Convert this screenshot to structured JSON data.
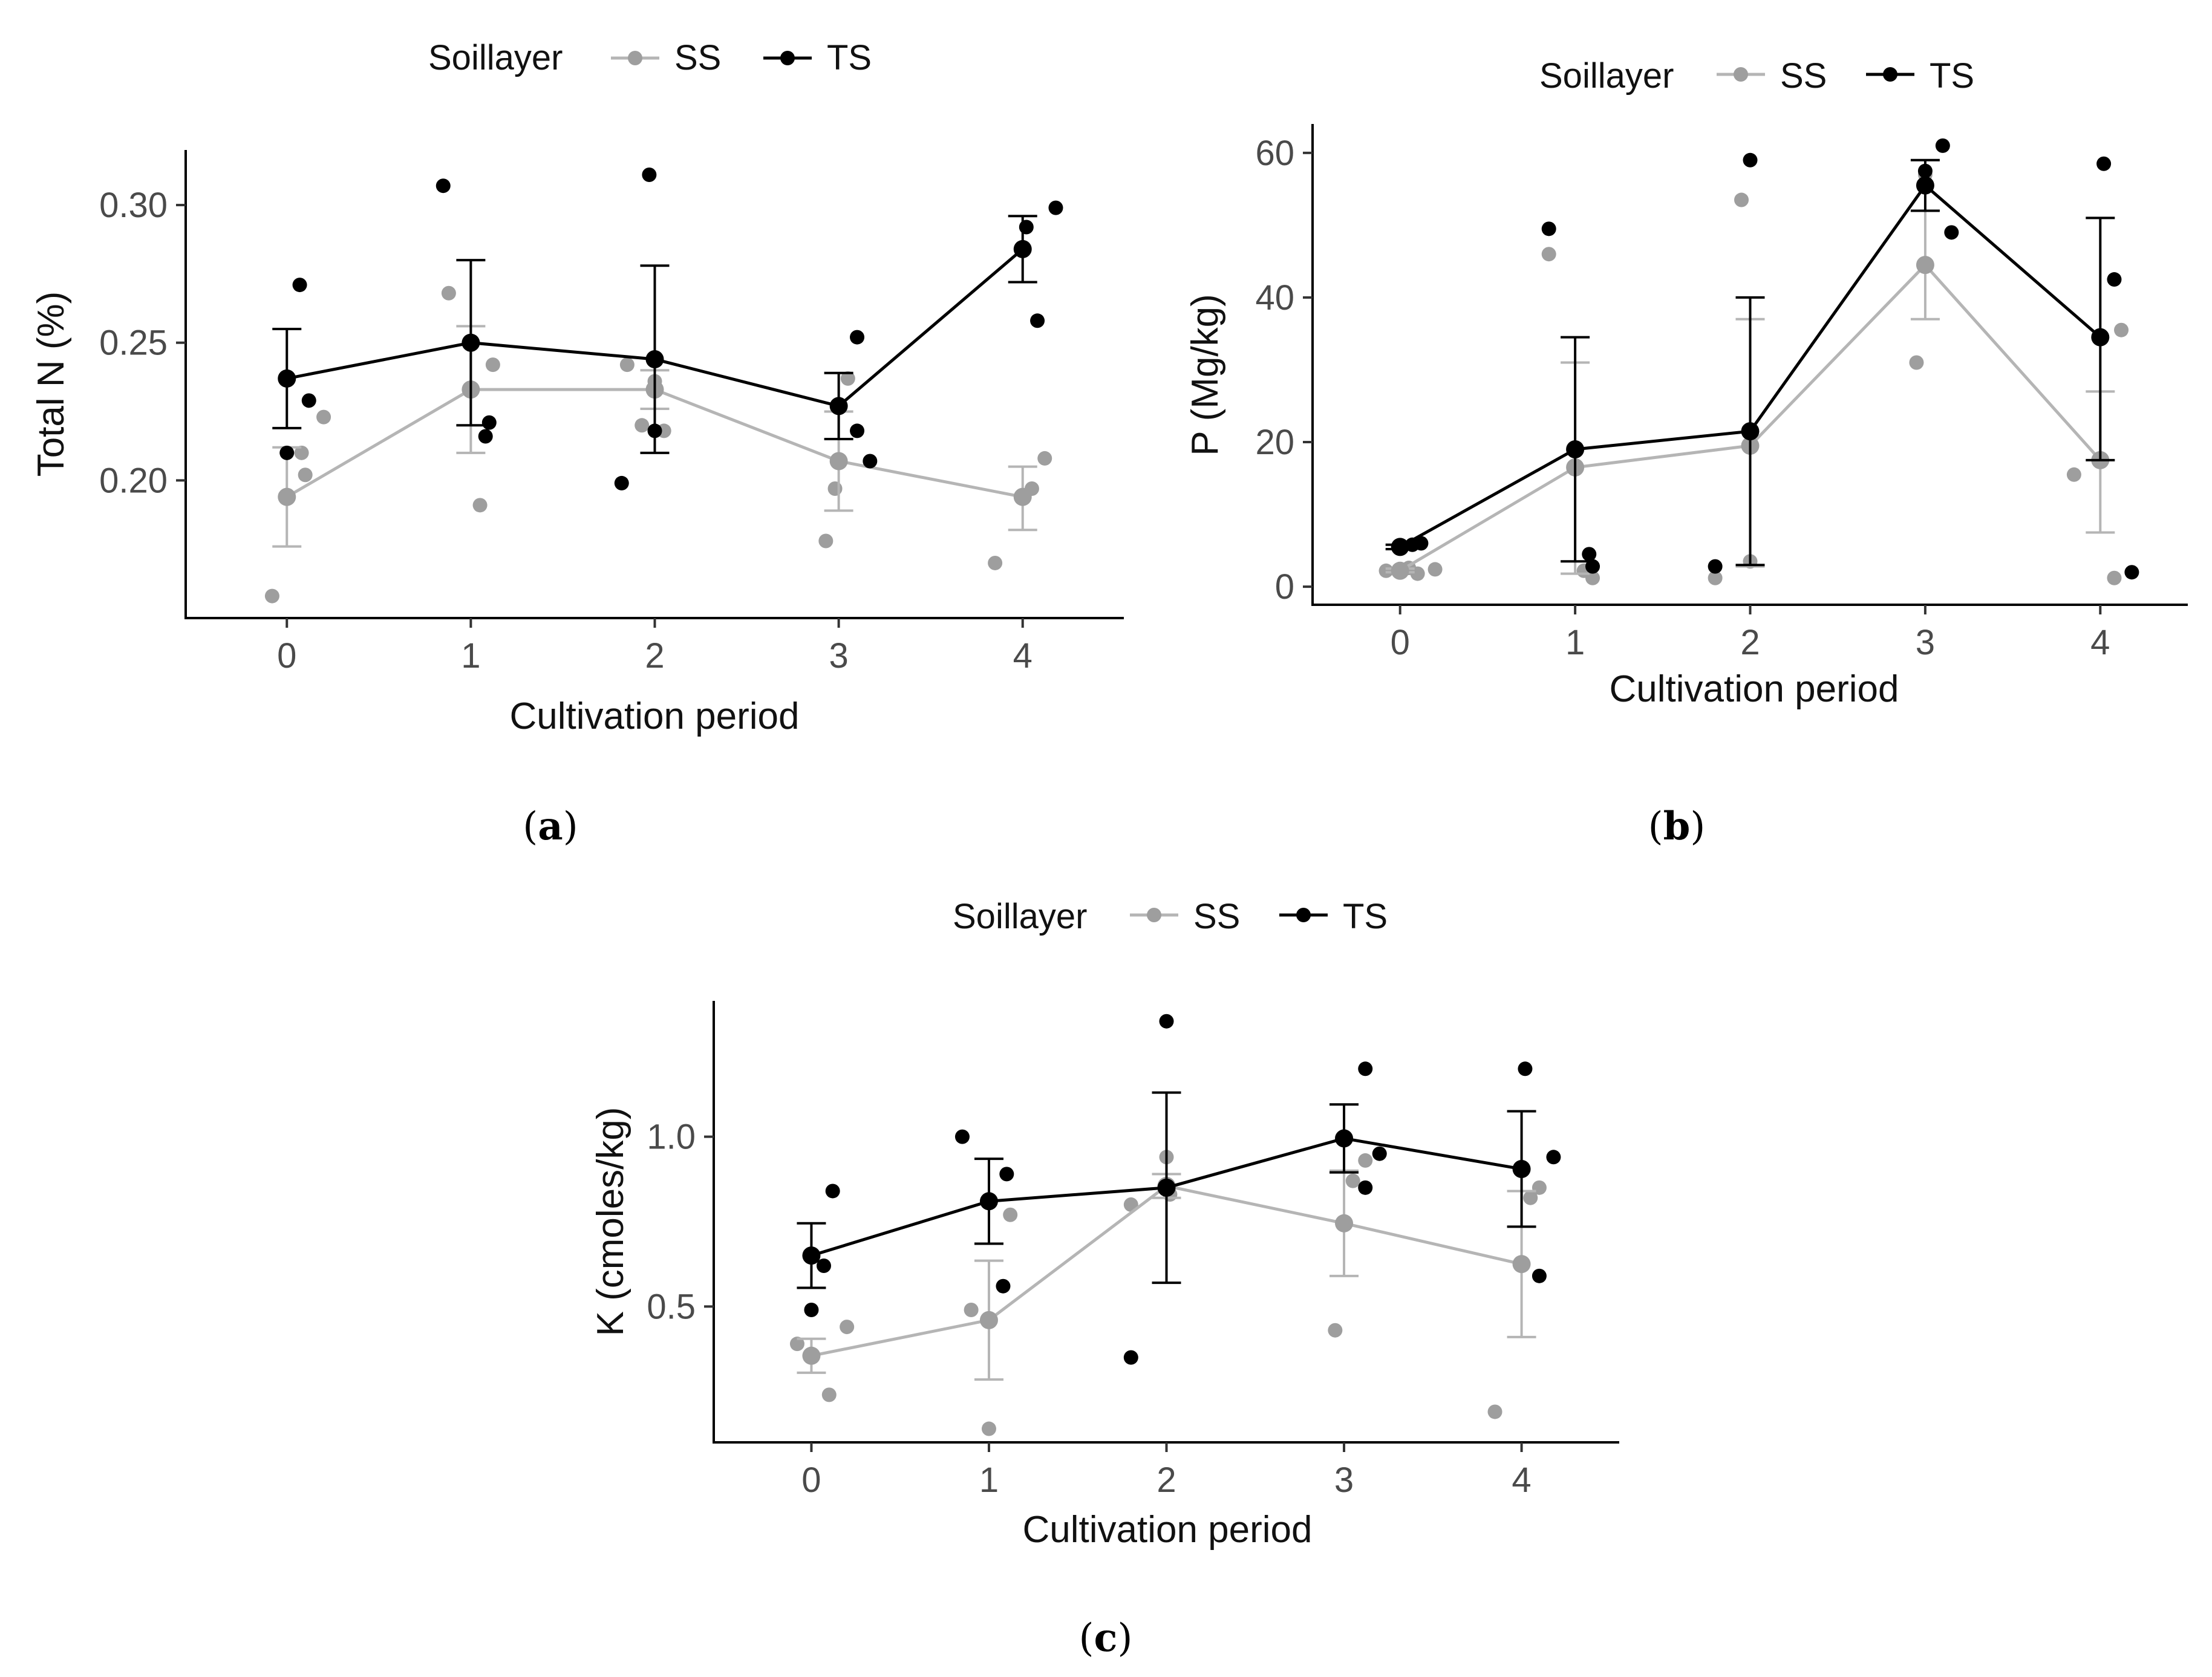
{
  "colors": {
    "SS": "#9e9e9e",
    "SS_line": "#b5b5b5",
    "TS": "#000000"
  },
  "chart_data": [
    {
      "id": "a",
      "type": "line",
      "panel_label_letter": "a",
      "legend": {
        "title": "Soillayer",
        "entries": [
          "SS",
          "TS"
        ]
      },
      "xlabel": "Cultivation period",
      "ylabel": "Total N (%)",
      "categories": [
        0,
        1,
        2,
        3,
        4
      ],
      "x_ticks": [
        "0",
        "1",
        "2",
        "3",
        "4"
      ],
      "xlim": [
        -0.55,
        4.55
      ],
      "ylim": [
        0.15,
        0.32
      ],
      "y_ticks": [
        0.2,
        0.25,
        0.3
      ],
      "y_tick_labels": [
        "0.20",
        "0.25",
        "0.30"
      ],
      "series": [
        {
          "name": "SS",
          "means": [
            0.194,
            0.233,
            0.233,
            0.207,
            0.194
          ],
          "err_low": [
            0.176,
            0.21,
            0.226,
            0.189,
            0.182
          ],
          "err_high": [
            0.212,
            0.256,
            0.24,
            0.225,
            0.205
          ],
          "points": [
            [
              -0.08,
              0.158
            ],
            [
              0.1,
              0.202
            ],
            [
              0.2,
              0.223
            ],
            [
              0.08,
              0.21
            ],
            [
              1.05,
              0.191
            ],
            [
              1.12,
              0.242
            ],
            [
              0.88,
              0.268
            ],
            [
              1.85,
              0.242
            ],
            [
              1.93,
              0.22
            ],
            [
              2.0,
              0.236
            ],
            [
              2.05,
              0.218
            ],
            [
              2.93,
              0.178
            ],
            [
              2.98,
              0.197
            ],
            [
              3.05,
              0.237
            ],
            [
              3.85,
              0.17
            ],
            [
              4.05,
              0.197
            ],
            [
              4.12,
              0.208
            ]
          ]
        },
        {
          "name": "TS",
          "means": [
            0.237,
            0.25,
            0.244,
            0.227,
            0.284
          ],
          "err_low": [
            0.219,
            0.22,
            0.21,
            0.215,
            0.272
          ],
          "err_high": [
            0.255,
            0.28,
            0.278,
            0.239,
            0.296
          ],
          "points": [
            [
              0.0,
              0.21
            ],
            [
              0.07,
              0.271
            ],
            [
              0.12,
              0.229
            ],
            [
              0.85,
              0.307
            ],
            [
              1.08,
              0.216
            ],
            [
              1.1,
              0.221
            ],
            [
              1.82,
              0.199
            ],
            [
              1.97,
              0.311
            ],
            [
              2.0,
              0.218
            ],
            [
              3.1,
              0.252
            ],
            [
              3.1,
              0.218
            ],
            [
              3.17,
              0.207
            ],
            [
              4.02,
              0.292
            ],
            [
              4.08,
              0.258
            ],
            [
              4.18,
              0.299
            ]
          ]
        }
      ]
    },
    {
      "id": "b",
      "type": "line",
      "panel_label_letter": "b",
      "legend": {
        "title": "Soillayer",
        "entries": [
          "SS",
          "TS"
        ]
      },
      "xlabel": "Cultivation period",
      "ylabel": "P (Mg/kg)",
      "categories": [
        0,
        1,
        2,
        3,
        4
      ],
      "x_ticks": [
        "0",
        "1",
        "2",
        "3",
        "4"
      ],
      "xlim": [
        -0.5,
        4.5
      ],
      "ylim": [
        -2.5,
        64
      ],
      "y_ticks": [
        0,
        20,
        40,
        60
      ],
      "y_tick_labels": [
        "0",
        "20",
        "40",
        "60"
      ],
      "series": [
        {
          "name": "SS",
          "means": [
            2.2,
            16.5,
            19.5,
            44.5,
            17.5
          ],
          "err_low": [
            2.0,
            1.8,
            2.8,
            37.0,
            7.5
          ],
          "err_high": [
            2.5,
            31.0,
            37.0,
            52.0,
            27.0
          ],
          "points": [
            [
              -0.08,
              2.2
            ],
            [
              0.0,
              2.4
            ],
            [
              0.05,
              2.6
            ],
            [
              0.1,
              1.8
            ],
            [
              0.2,
              2.4
            ],
            [
              0.85,
              46.0
            ],
            [
              1.05,
              2.2
            ],
            [
              1.1,
              1.2
            ],
            [
              1.8,
              1.2
            ],
            [
              1.95,
              53.5
            ],
            [
              2.0,
              3.5
            ],
            [
              2.95,
              31.0
            ],
            [
              3.0,
              57.0
            ],
            [
              3.85,
              15.5
            ],
            [
              4.08,
              1.2
            ],
            [
              4.12,
              35.5
            ]
          ]
        },
        {
          "name": "TS",
          "means": [
            5.5,
            19.0,
            21.5,
            55.5,
            34.5
          ],
          "err_low": [
            5.2,
            3.5,
            3.0,
            52.0,
            17.5
          ],
          "err_high": [
            5.8,
            34.5,
            40.0,
            59.0,
            51.0
          ],
          "points": [
            [
              0.0,
              5.3
            ],
            [
              0.07,
              5.8
            ],
            [
              0.12,
              6.0
            ],
            [
              0.85,
              49.5
            ],
            [
              1.08,
              4.5
            ],
            [
              1.1,
              2.8
            ],
            [
              1.8,
              2.8
            ],
            [
              2.0,
              59.0
            ],
            [
              3.0,
              57.5
            ],
            [
              3.1,
              61.0
            ],
            [
              3.15,
              49.0
            ],
            [
              4.02,
              58.5
            ],
            [
              4.08,
              42.5
            ],
            [
              4.18,
              2.0
            ]
          ]
        }
      ]
    },
    {
      "id": "c",
      "type": "line",
      "panel_label_letter": "c",
      "legend": {
        "title": "Soillayer",
        "entries": [
          "SS",
          "TS"
        ]
      },
      "xlabel": "Cultivation period",
      "ylabel": "K (cmoles/kg)",
      "categories": [
        0,
        1,
        2,
        3,
        4
      ],
      "x_ticks": [
        "0",
        "1",
        "2",
        "3",
        "4"
      ],
      "xlim": [
        -0.55,
        4.55
      ],
      "ylim": [
        0.1,
        1.4
      ],
      "y_ticks": [
        0.5,
        1.0
      ],
      "y_tick_labels": [
        "0.5",
        "1.0"
      ],
      "series": [
        {
          "name": "SS",
          "means": [
            0.355,
            0.46,
            0.855,
            0.745,
            0.625
          ],
          "err_low": [
            0.305,
            0.285,
            0.82,
            0.59,
            0.41
          ],
          "err_high": [
            0.405,
            0.635,
            0.89,
            0.9,
            0.84
          ],
          "points": [
            [
              -0.08,
              0.39
            ],
            [
              0.1,
              0.24
            ],
            [
              0.2,
              0.44
            ],
            [
              0.9,
              0.49
            ],
            [
              1.0,
              0.14
            ],
            [
              1.12,
              0.77
            ],
            [
              1.8,
              0.8
            ],
            [
              2.0,
              0.94
            ],
            [
              2.02,
              0.83
            ],
            [
              2.95,
              0.43
            ],
            [
              3.05,
              0.87
            ],
            [
              3.12,
              0.93
            ],
            [
              3.85,
              0.19
            ],
            [
              4.05,
              0.82
            ],
            [
              4.1,
              0.85
            ]
          ]
        },
        {
          "name": "TS",
          "means": [
            0.65,
            0.81,
            0.85,
            0.995,
            0.905
          ],
          "err_low": [
            0.555,
            0.685,
            0.57,
            0.895,
            0.735
          ],
          "err_high": [
            0.745,
            0.935,
            1.13,
            1.095,
            1.075
          ],
          "points": [
            [
              0.0,
              0.49
            ],
            [
              0.07,
              0.62
            ],
            [
              0.12,
              0.84
            ],
            [
              0.85,
              1.0
            ],
            [
              1.08,
              0.56
            ],
            [
              1.1,
              0.89
            ],
            [
              1.8,
              0.35
            ],
            [
              2.0,
              1.34
            ],
            [
              3.12,
              1.2
            ],
            [
              3.12,
              0.85
            ],
            [
              3.2,
              0.95
            ],
            [
              4.02,
              1.2
            ],
            [
              4.1,
              0.59
            ],
            [
              4.18,
              0.94
            ]
          ]
        }
      ]
    }
  ]
}
